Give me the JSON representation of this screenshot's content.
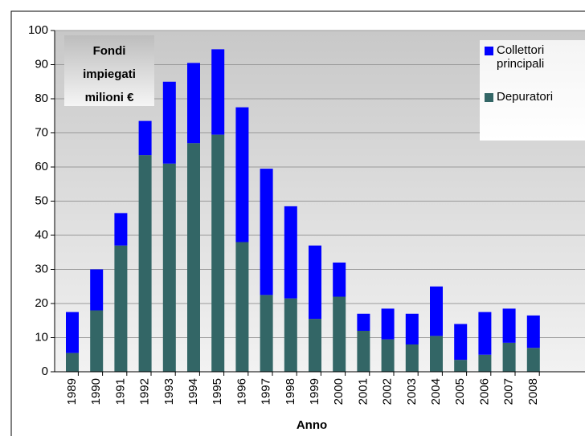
{
  "chart_data": {
    "type": "stacked_bar",
    "annotation": [
      "Fondi",
      "impiegati",
      "milioni €"
    ],
    "x_label": "Anno",
    "categories": [
      "1989",
      "1990",
      "1991",
      "1992",
      "1993",
      "1994",
      "1995",
      "1996",
      "1997",
      "1998",
      "1999",
      "2000",
      "2001",
      "2002",
      "2003",
      "2004",
      "2005",
      "2006",
      "2007",
      "2008"
    ],
    "series": [
      {
        "name": "Depuratori",
        "color": "#336666",
        "values": [
          5.5,
          18,
          37,
          63.5,
          61,
          67,
          69.5,
          38,
          22.5,
          21.5,
          15.5,
          22,
          12,
          9.5,
          8,
          10.5,
          3.5,
          5,
          8.5,
          7
        ]
      },
      {
        "name": "Collettori principali",
        "color": "#0000ff",
        "values": [
          12,
          12,
          9.5,
          10,
          24,
          23.5,
          25,
          39.5,
          37,
          27,
          21.5,
          10,
          5,
          9,
          9,
          14.5,
          10.5,
          12.5,
          10,
          9.5
        ]
      }
    ],
    "ylim": [
      0,
      100
    ],
    "yticks": [
      0,
      10,
      20,
      30,
      40,
      50,
      60,
      70,
      80,
      90,
      100
    ],
    "grid": true,
    "legend": "top-right"
  }
}
